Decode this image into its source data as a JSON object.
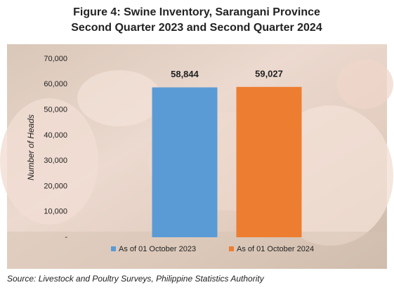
{
  "chart_data": {
    "type": "bar",
    "title": "Figure 4: Swine Inventory, Sarangani Province",
    "subtitle": "Second Quarter 2023 and Second Quarter 2024",
    "y_label": "Number of Heads",
    "categories": [
      null
    ],
    "series": [
      {
        "name": "As of 01 October 2023",
        "color": "#5b9bd5",
        "values": [
          58844
        ],
        "value_labels": [
          "58,844"
        ]
      },
      {
        "name": "As of 01 October 2024",
        "color": "#ed7d31",
        "values": [
          59027
        ],
        "value_labels": [
          "59,027"
        ]
      }
    ],
    "ylim": [
      0,
      70000
    ],
    "yticks": [
      {
        "value": 0,
        "label": "-"
      },
      {
        "value": 10000,
        "label": "10,000"
      },
      {
        "value": 20000,
        "label": "20,000"
      },
      {
        "value": 30000,
        "label": "30,000"
      },
      {
        "value": 40000,
        "label": "40,000"
      },
      {
        "value": 50000,
        "label": "50,000"
      },
      {
        "value": 60000,
        "label": "60,000"
      },
      {
        "value": 70000,
        "label": "70,000"
      }
    ],
    "legend": "bottom",
    "source": "Source: Livestock and Poultry Surveys, Philippine Statistics Authority"
  }
}
